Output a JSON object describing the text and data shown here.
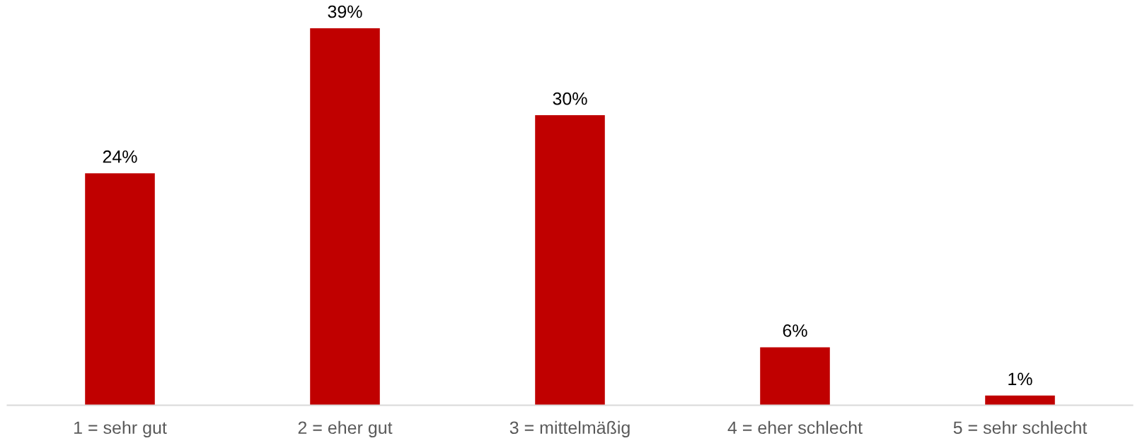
{
  "chart_data": {
    "type": "bar",
    "categories": [
      "1 = sehr gut",
      "2 = eher gut",
      "3 = mittelmäßig",
      "4 = eher schlecht",
      "5 = sehr schlecht"
    ],
    "values": [
      24,
      39,
      30,
      6,
      1
    ],
    "value_labels": [
      "24%",
      "39%",
      "30%",
      "6%",
      "1%"
    ],
    "color": "#c00000"
  }
}
